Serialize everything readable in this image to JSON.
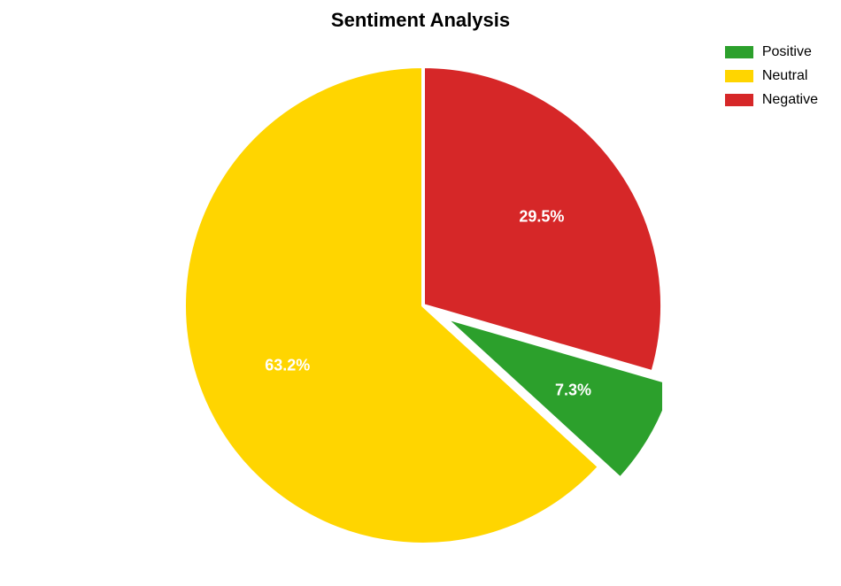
{
  "chart": {
    "type": "pie",
    "title": "Sentiment Analysis",
    "title_fontsize": 22,
    "title_fontweight": "bold",
    "background_color": "#ffffff",
    "slice_border_color": "#ffffff",
    "slice_border_width": 4,
    "radius": 270,
    "label_color": "#ffffff",
    "label_fontsize": 18,
    "label_fontweight": "bold",
    "start_angle_deg": -90,
    "slices": [
      {
        "name": "Negative",
        "value": 29.5,
        "label": "29.5%",
        "color": "#d62728",
        "explode": 0
      },
      {
        "name": "Positive",
        "value": 7.3,
        "label": "7.3%",
        "color": "#2ca02c",
        "explode": 0.1
      },
      {
        "name": "Neutral",
        "value": 63.2,
        "label": "63.2%",
        "color": "#ffd500",
        "explode": 0
      }
    ],
    "legend": {
      "fontsize": 16,
      "swatch_width": 32,
      "swatch_height": 14,
      "items": [
        {
          "label": "Positive",
          "color": "#2ca02c"
        },
        {
          "label": "Neutral",
          "color": "#ffd500"
        },
        {
          "label": "Negative",
          "color": "#d62728"
        }
      ]
    }
  }
}
